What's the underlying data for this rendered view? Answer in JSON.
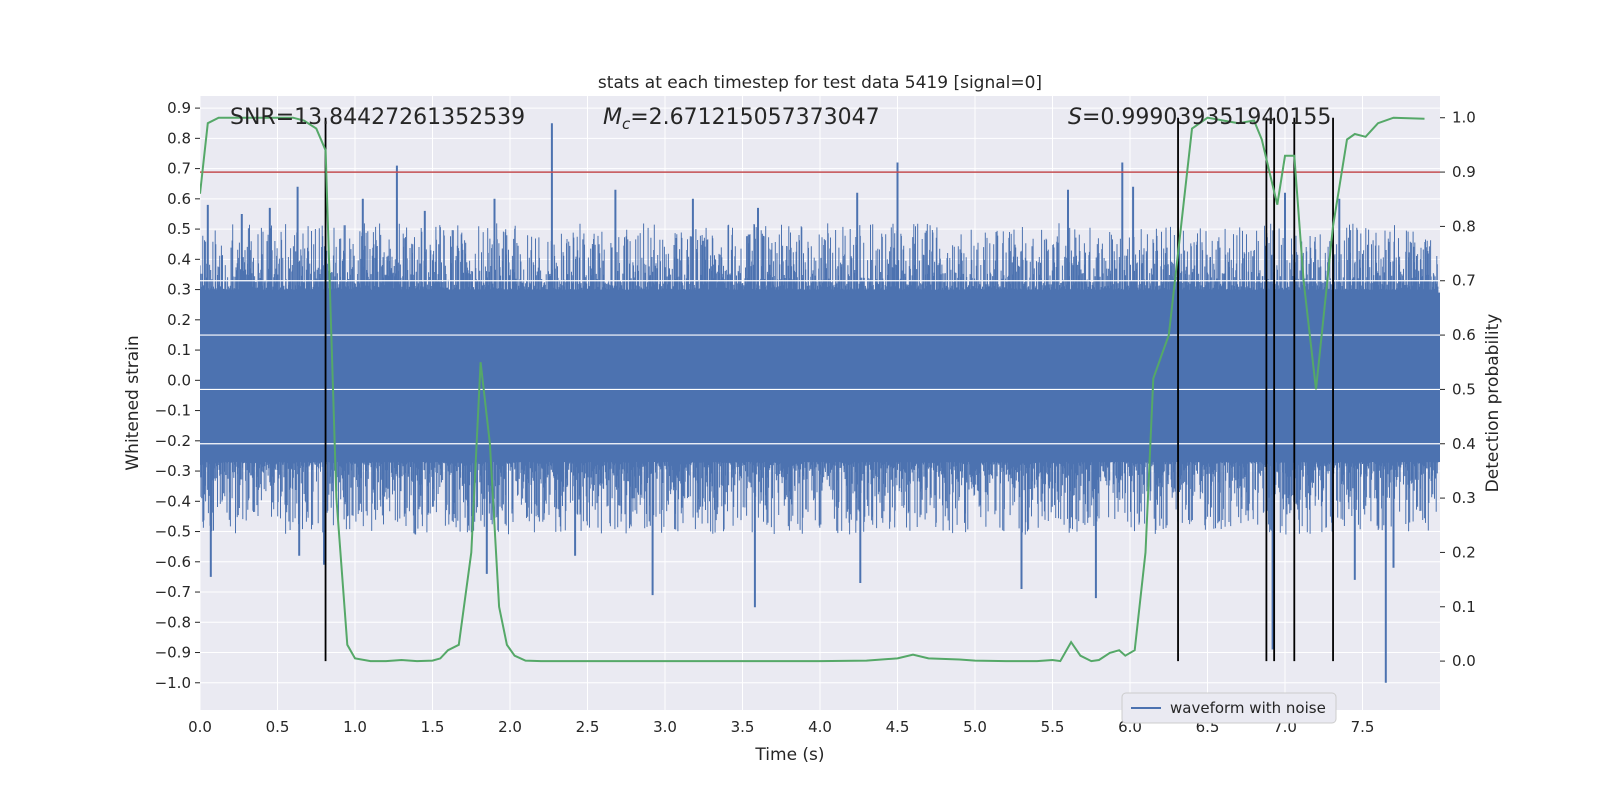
{
  "chart_data": {
    "type": "line",
    "title": "stats at each timestep for test data 5419 [signal=0]",
    "xlabel": "Time (s)",
    "ylabel_left": "Whitened strain",
    "ylabel_right": "Detection probability",
    "xlim": [
      0,
      8.0
    ],
    "ylim_left": [
      -1.09,
      0.94
    ],
    "ylim_right": [
      -0.09,
      1.04
    ],
    "x_ticks": [
      "0.0",
      "0.5",
      "1.0",
      "1.5",
      "2.0",
      "2.5",
      "3.0",
      "3.5",
      "4.0",
      "4.5",
      "5.0",
      "5.5",
      "6.0",
      "6.5",
      "7.0",
      "7.5"
    ],
    "y_left_ticks": [
      "0.9",
      "0.8",
      "0.7",
      "0.6",
      "0.5",
      "0.4",
      "0.3",
      "0.2",
      "0.1",
      "0.0",
      "-0.1",
      "-0.2",
      "-0.3",
      "-0.4",
      "-0.5",
      "-0.6",
      "-0.7",
      "-0.8",
      "-0.9",
      "-1.0"
    ],
    "y_right_ticks": [
      "1.0",
      "0.9",
      "0.8",
      "0.7",
      "0.6",
      "0.5",
      "0.4",
      "0.3",
      "0.2",
      "0.1",
      "0.0"
    ],
    "grid": true,
    "annotations": {
      "snr": "SNR=13.84427261352539",
      "mc_symbol": "M",
      "mc_sub": "c",
      "mc_value": "=2.671215057373047",
      "s_symbol": "S",
      "s_value": "=0.999039351940155"
    },
    "legend": {
      "label": "waveform with noise",
      "position": "lower-right"
    },
    "threshold": {
      "value": 0.9,
      "axis": "right",
      "color": "#c44e52"
    },
    "vertical_lines": [
      0.81,
      6.31,
      6.88,
      6.93,
      7.06,
      7.31
    ],
    "noise_envelope": {
      "dense_band": [
        -0.27,
        0.29
      ],
      "spike_max": 0.85,
      "spike_min": -1.0
    },
    "noise_spikes": [
      {
        "x": 0.05,
        "y": 0.58
      },
      {
        "x": 0.27,
        "y": 0.55
      },
      {
        "x": 0.45,
        "y": 0.57
      },
      {
        "x": 0.63,
        "y": 0.64
      },
      {
        "x": 1.05,
        "y": 0.6
      },
      {
        "x": 1.27,
        "y": 0.71
      },
      {
        "x": 1.45,
        "y": 0.56
      },
      {
        "x": 1.9,
        "y": 0.6
      },
      {
        "x": 2.27,
        "y": 0.85
      },
      {
        "x": 2.68,
        "y": 0.63
      },
      {
        "x": 3.18,
        "y": 0.6
      },
      {
        "x": 3.6,
        "y": 0.57
      },
      {
        "x": 4.24,
        "y": 0.62
      },
      {
        "x": 4.5,
        "y": 0.72
      },
      {
        "x": 5.6,
        "y": 0.63
      },
      {
        "x": 5.95,
        "y": 0.72
      },
      {
        "x": 6.02,
        "y": 0.64
      },
      {
        "x": 7.0,
        "y": 0.62
      },
      {
        "x": 7.35,
        "y": 0.6
      },
      {
        "x": 0.07,
        "y": -0.65
      },
      {
        "x": 0.64,
        "y": -0.58
      },
      {
        "x": 0.8,
        "y": -0.61
      },
      {
        "x": 1.85,
        "y": -0.64
      },
      {
        "x": 2.42,
        "y": -0.58
      },
      {
        "x": 2.92,
        "y": -0.71
      },
      {
        "x": 3.58,
        "y": -0.75
      },
      {
        "x": 4.26,
        "y": -0.67
      },
      {
        "x": 5.3,
        "y": -0.69
      },
      {
        "x": 5.78,
        "y": -0.72
      },
      {
        "x": 6.92,
        "y": -0.89
      },
      {
        "x": 7.45,
        "y": -0.66
      },
      {
        "x": 7.65,
        "y": -1.0
      },
      {
        "x": 7.7,
        "y": -0.62
      }
    ],
    "series": [
      {
        "name": "waveform with noise",
        "axis": "left",
        "color": "#4c72b0",
        "style": "dense noise, values between about -1.0 and 0.85"
      },
      {
        "axis": "right",
        "color": "#55a868",
        "x": [
          0.0,
          0.05,
          0.12,
          0.2,
          0.3,
          0.4,
          0.5,
          0.6,
          0.67,
          0.75,
          0.81,
          0.88,
          0.95,
          1.0,
          1.1,
          1.2,
          1.3,
          1.4,
          1.5,
          1.55,
          1.6,
          1.67,
          1.75,
          1.81,
          1.87,
          1.93,
          1.98,
          2.03,
          2.1,
          2.2,
          2.5,
          3.0,
          3.3,
          3.6,
          4.0,
          4.3,
          4.5,
          4.6,
          4.7,
          4.9,
          5.0,
          5.2,
          5.4,
          5.5,
          5.55,
          5.62,
          5.68,
          5.75,
          5.8,
          5.87,
          5.93,
          5.97,
          6.03,
          6.1,
          6.15,
          6.2,
          6.25,
          6.31,
          6.4,
          6.5,
          6.6,
          6.7,
          6.8,
          6.85,
          6.9,
          6.95,
          7.0,
          7.06,
          7.12,
          7.2,
          7.31,
          7.4,
          7.45,
          7.52,
          7.6,
          7.7,
          7.9
        ],
        "y": [
          0.86,
          0.99,
          1.0,
          1.0,
          1.0,
          1.0,
          1.0,
          1.0,
          0.995,
          0.98,
          0.94,
          0.3,
          0.03,
          0.005,
          0.0,
          0.0,
          0.002,
          0.0,
          0.001,
          0.005,
          0.02,
          0.03,
          0.2,
          0.55,
          0.4,
          0.1,
          0.03,
          0.01,
          0.001,
          0.0,
          0.0,
          0.0,
          0.0,
          0.0,
          0.0,
          0.001,
          0.005,
          0.012,
          0.005,
          0.003,
          0.001,
          0.0,
          0.0,
          0.002,
          0.0,
          0.035,
          0.01,
          0.0,
          0.002,
          0.015,
          0.02,
          0.01,
          0.02,
          0.2,
          0.52,
          0.56,
          0.6,
          0.75,
          0.98,
          1.0,
          0.995,
          0.99,
          0.995,
          0.96,
          0.9,
          0.84,
          0.93,
          0.93,
          0.7,
          0.5,
          0.8,
          0.96,
          0.97,
          0.965,
          0.99,
          1.0,
          0.998
        ]
      }
    ]
  }
}
